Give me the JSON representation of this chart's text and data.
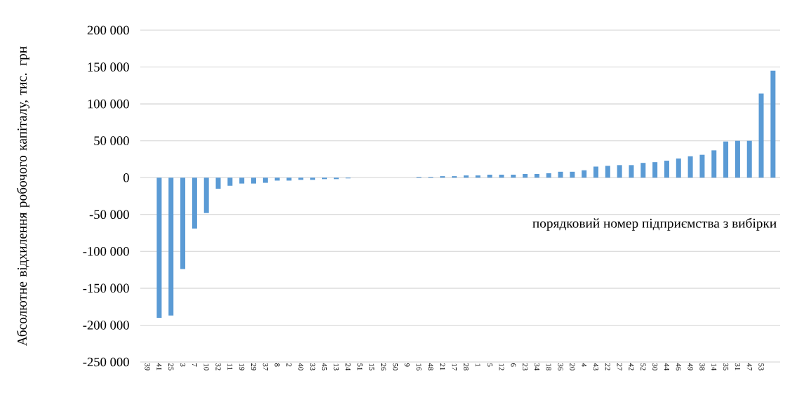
{
  "chart_data": {
    "type": "bar",
    "ylabel": "Абсолютне відхилення робочого капіталу,  тис. грн",
    "xlabel": "порядковий номер підприємства  з вибірки",
    "categories": [
      "39",
      "41",
      "25",
      "3",
      "7",
      "10",
      "32",
      "11",
      "19",
      "29",
      "37",
      "8",
      "2",
      "40",
      "33",
      "45",
      "13",
      "24",
      "51",
      "15",
      "26",
      "50",
      "9",
      "16",
      "48",
      "21",
      "17",
      "28",
      "1",
      "5",
      "12",
      "6",
      "23",
      "34",
      "18",
      "36",
      "20",
      "4",
      "43",
      "22",
      "27",
      "42",
      "52",
      "30",
      "44",
      "46",
      "49",
      "38",
      "14",
      "35",
      "31",
      "47",
      "53",
      null
    ],
    "values": [
      0,
      -190000,
      -187000,
      -124000,
      -69000,
      -48000,
      -15000,
      -11000,
      -8000,
      -8000,
      -7000,
      -4000,
      -4000,
      -3000,
      -3000,
      -2000,
      -2000,
      -1000,
      0,
      0,
      0,
      0,
      0,
      1000,
      1000,
      2000,
      2000,
      3000,
      3000,
      4000,
      4000,
      4000,
      5000,
      5000,
      6000,
      8000,
      8000,
      10000,
      15000,
      16000,
      17000,
      17000,
      20000,
      21000,
      23000,
      26000,
      29000,
      31000,
      37000,
      49000,
      50000,
      50000,
      114000,
      145000
    ],
    "color": "#5b9bd5",
    "ylim": [
      -250000,
      200000
    ],
    "yticks": [
      {
        "value": -250000,
        "label": "-250 000"
      },
      {
        "value": -200000,
        "label": "-200 000"
      },
      {
        "value": -150000,
        "label": "-150 000"
      },
      {
        "value": -100000,
        "label": "-100 000"
      },
      {
        "value": -50000,
        "label": "-50 000"
      },
      0,
      {
        "value": 50000,
        "label": "50 000"
      },
      {
        "value": 100000,
        "label": "100 000"
      },
      {
        "value": 150000,
        "label": "150 000"
      },
      {
        "value": 200000,
        "label": "200 000"
      }
    ],
    "grid": "y"
  }
}
